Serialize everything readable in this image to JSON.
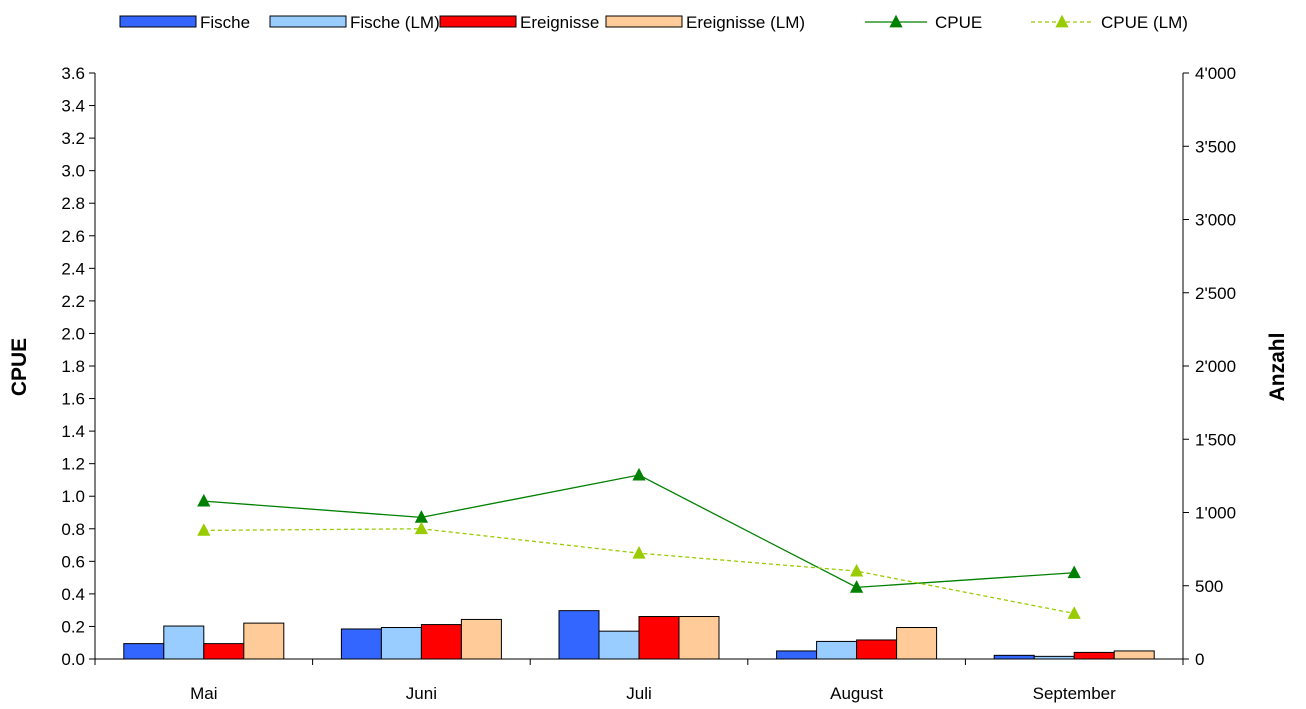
{
  "chart_data": {
    "type": "bar",
    "categories": [
      "Mai",
      "Juni",
      "Juli",
      "August",
      "September"
    ],
    "series": [
      {
        "name": "Fische",
        "kind": "bar",
        "axis": "right",
        "color": "#3366FF",
        "values": [
          105,
          205,
          330,
          55,
          25
        ]
      },
      {
        "name": "Fische (LM)",
        "kind": "bar",
        "axis": "right",
        "color": "#99CCFF",
        "values": [
          225,
          215,
          190,
          120,
          18
        ]
      },
      {
        "name": "Ereignisse",
        "kind": "bar",
        "axis": "right",
        "color": "#FF0000",
        "values": [
          105,
          235,
          290,
          130,
          45
        ]
      },
      {
        "name": "Ereignisse (LM)",
        "kind": "bar",
        "axis": "right",
        "color": "#FFCC99",
        "values": [
          245,
          270,
          290,
          215,
          55
        ]
      },
      {
        "name": "CPUE",
        "kind": "line",
        "axis": "left",
        "color": "#008000",
        "dashed": false,
        "values": [
          0.97,
          0.87,
          1.13,
          0.44,
          0.53
        ]
      },
      {
        "name": "CPUE (LM)",
        "kind": "line",
        "axis": "left",
        "color": "#99CC00",
        "dashed": true,
        "values": [
          0.79,
          0.8,
          0.65,
          0.54,
          0.28
        ]
      }
    ],
    "ylabel": "CPUE",
    "ylabel_right": "Anzahl",
    "ylim": [
      0,
      3.6
    ],
    "ylim_right": [
      0,
      4000
    ],
    "yticks": [
      "0.0",
      "0.2",
      "0.4",
      "0.6",
      "0.8",
      "1.0",
      "1.2",
      "1.4",
      "1.6",
      "1.8",
      "2.0",
      "2.2",
      "2.4",
      "2.6",
      "2.8",
      "3.0",
      "3.2",
      "3.4",
      "3.6"
    ],
    "yticks_right": [
      "0",
      "500",
      "1'000",
      "1'500",
      "2'000",
      "2'500",
      "3'000",
      "3'500",
      "4'000"
    ],
    "grid": false,
    "legend_position": "top"
  }
}
